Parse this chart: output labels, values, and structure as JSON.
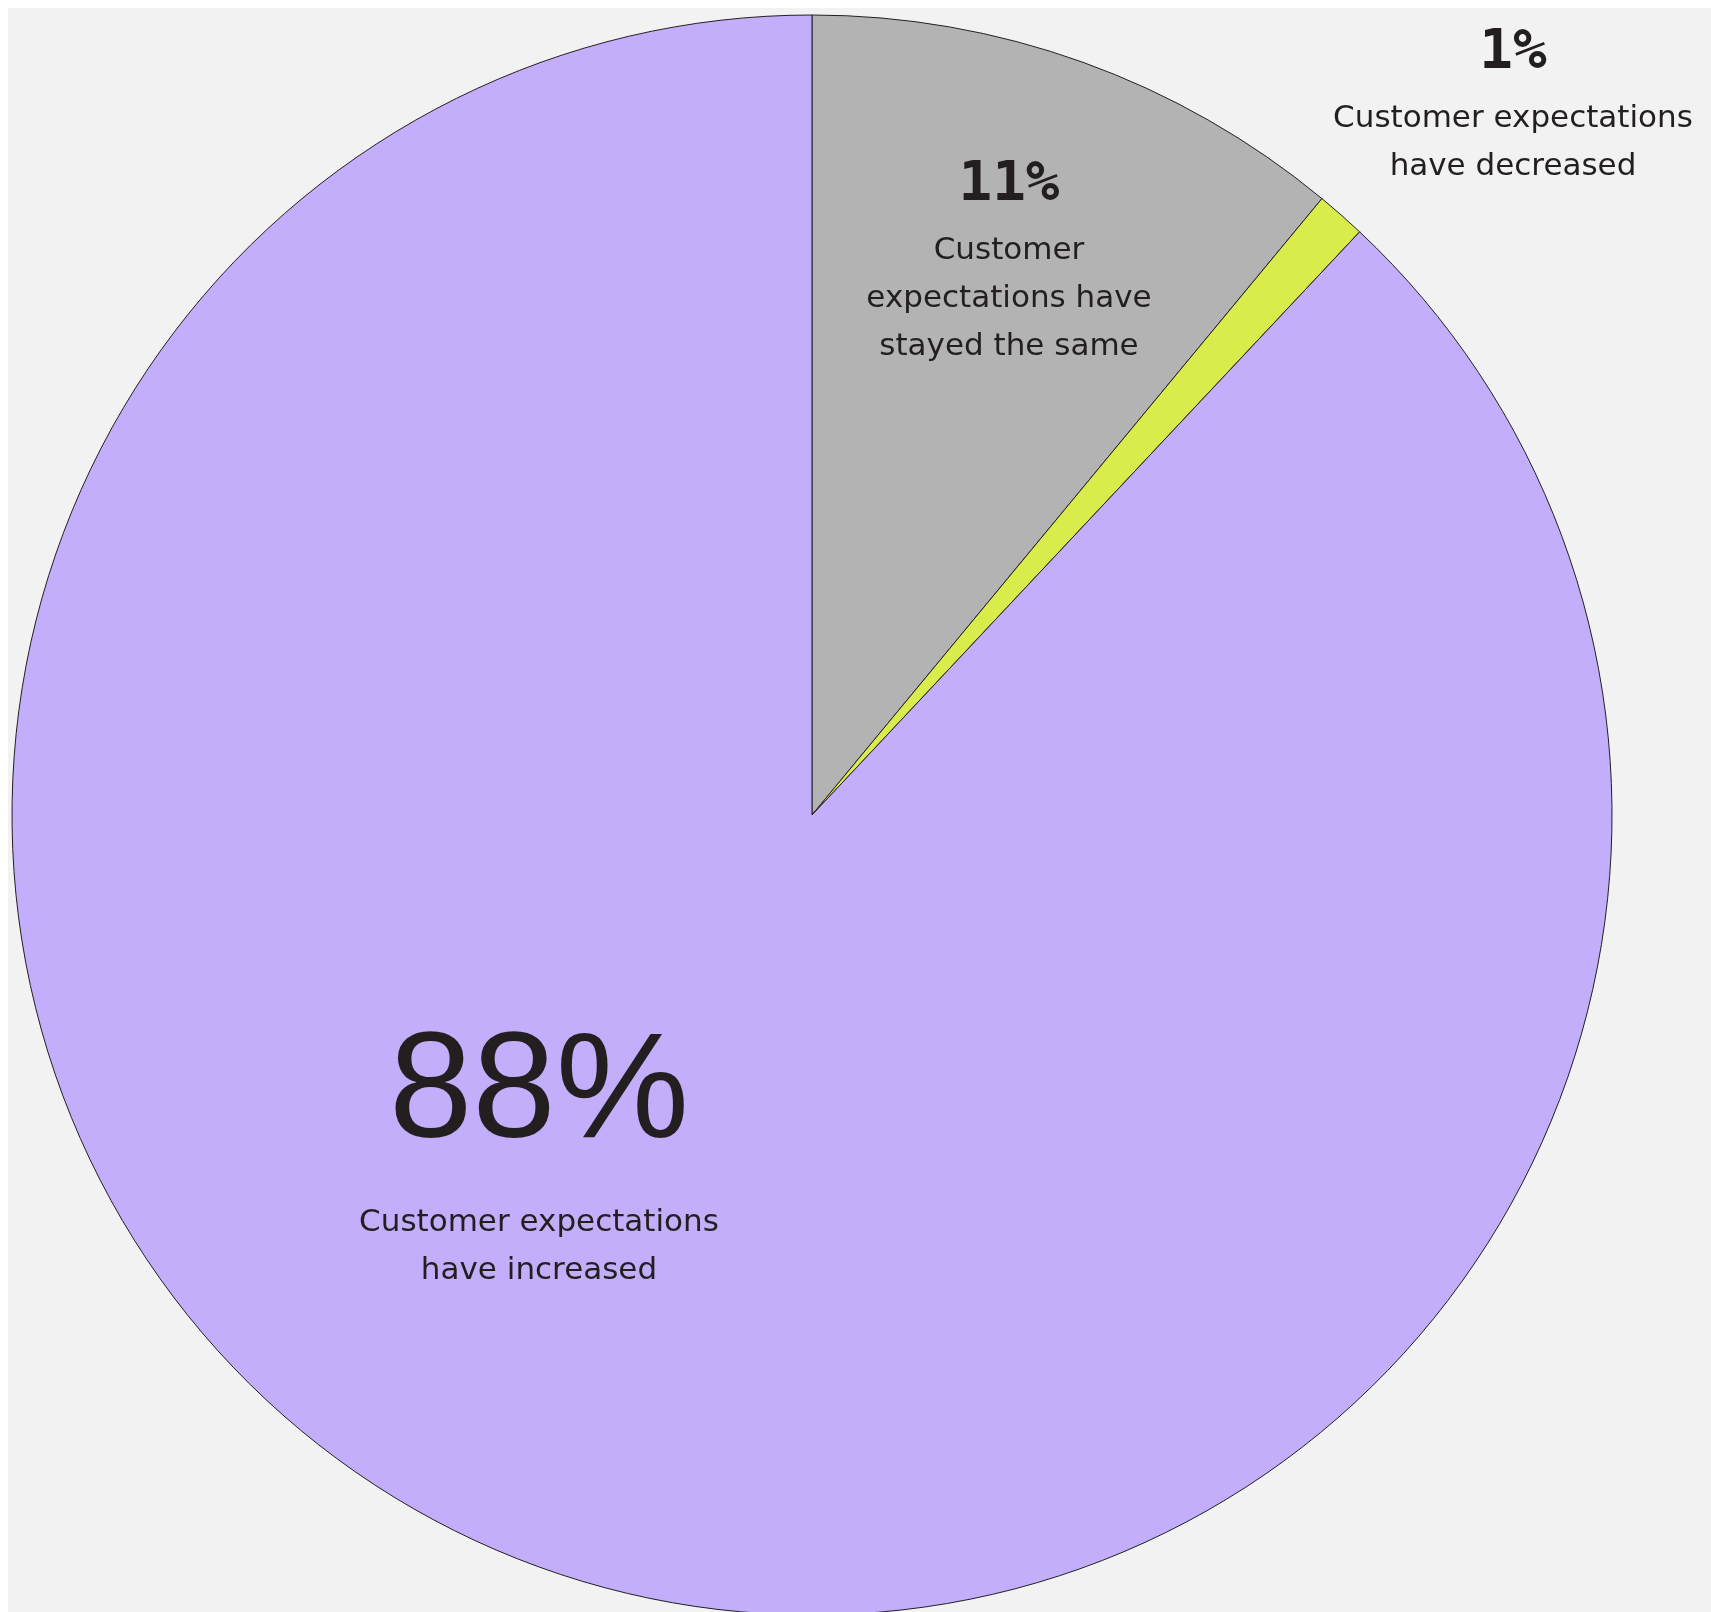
{
  "chart_data": {
    "type": "pie",
    "categories": [
      "Customer expectations have stayed the same",
      "Customer expectations have decreased",
      "Customer expectations have increased"
    ],
    "values": [
      11,
      1,
      88
    ],
    "colors": [
      "#b3b3b3",
      "#d8ec4c",
      "#c3aefc"
    ],
    "value_labels": [
      "11%",
      "1%",
      "88%"
    ],
    "legend": false
  }
}
